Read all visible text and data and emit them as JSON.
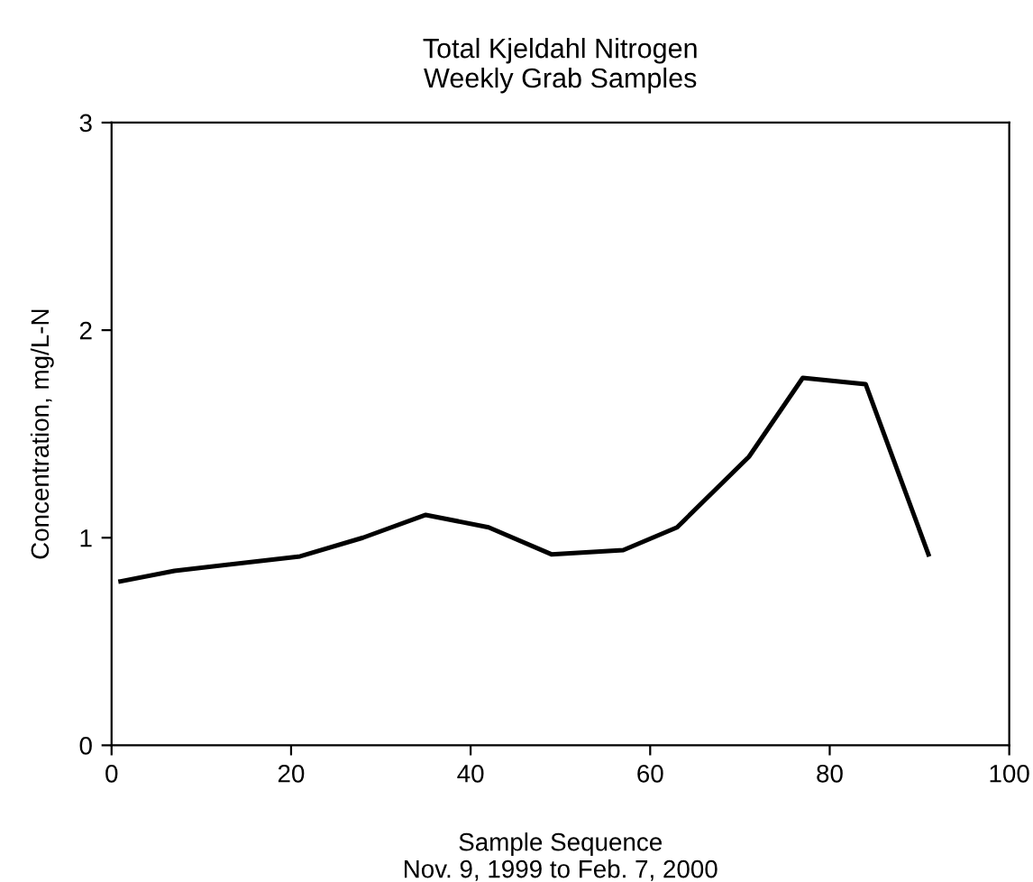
{
  "chart_data": {
    "type": "line",
    "title": "Total Kjeldahl Nitrogen\nWeekly Grab Samples",
    "xlabel": "Sample Sequence\nNov. 9, 1999 to Feb. 7, 2000",
    "ylabel": "Concentration, mg/L-N",
    "x": [
      1,
      7,
      21,
      28,
      35,
      42,
      49,
      57,
      63,
      71,
      77,
      84,
      91
    ],
    "series": [
      {
        "color": "#000000",
        "values": [
          0.79,
          0.84,
          0.91,
          1.0,
          1.11,
          1.05,
          0.92,
          0.94,
          1.05,
          1.39,
          1.77,
          1.74,
          0.92
        ]
      }
    ],
    "xlim": [
      0,
      100
    ],
    "xticks": [
      0,
      20,
      40,
      60,
      80,
      100
    ],
    "ylim": [
      0,
      3
    ],
    "yticks": [
      0,
      1,
      2,
      3
    ],
    "grid": false,
    "legend": false,
    "marker": "none",
    "line_style": "solid"
  }
}
